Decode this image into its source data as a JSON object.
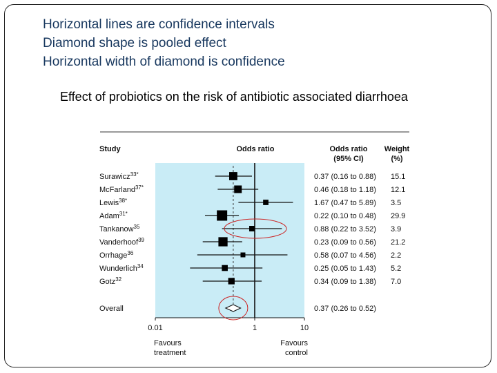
{
  "slide": {
    "notes": [
      "Horizontal lines are confidence intervals",
      "Diamond shape is pooled effect",
      "Horizontal width of diamond is confidence"
    ],
    "subtitle": "Effect of probiotics on the risk of antibiotic associated diarrhoea"
  },
  "chart_data": {
    "type": "forest",
    "headers": {
      "study": "Study",
      "odds_ratio": "Odds ratio",
      "or_ci_line1": "Odds ratio",
      "or_ci_line2": "(95% CI)",
      "weight_line1": "Weight",
      "weight_line2": "(%)"
    },
    "x_scale": "log",
    "x_ticks": [
      {
        "value": 0.01,
        "label": "0.01"
      },
      {
        "value": 1,
        "label": "1"
      },
      {
        "value": 10,
        "label": "10"
      }
    ],
    "xlim": [
      0.01,
      10
    ],
    "favours_left": [
      "Favours",
      "treatment"
    ],
    "favours_right": [
      "Favours",
      "control"
    ],
    "plot_background": "#c9ecf6",
    "highlight_color": "#cc2222",
    "studies": [
      {
        "name": "Surawicz",
        "ref": "33*",
        "or": 0.37,
        "lo": 0.16,
        "hi": 0.88,
        "ci_text": "0.37 (0.16 to 0.88)",
        "weight": 15.1,
        "weight_text": "15.1"
      },
      {
        "name": "McFarland",
        "ref": "37*",
        "or": 0.46,
        "lo": 0.18,
        "hi": 1.18,
        "ci_text": "0.46 (0.18 to 1.18)",
        "weight": 12.1,
        "weight_text": "12.1"
      },
      {
        "name": "Lewis",
        "ref": "38*",
        "or": 1.67,
        "lo": 0.47,
        "hi": 5.89,
        "ci_text": "1.67 (0.47 to 5.89)",
        "weight": 3.5,
        "weight_text": "3.5"
      },
      {
        "name": "Adam",
        "ref": "31*",
        "or": 0.22,
        "lo": 0.1,
        "hi": 0.48,
        "ci_text": "0.22 (0.10 to 0.48)",
        "weight": 29.9,
        "weight_text": "29.9"
      },
      {
        "name": "Tankanow",
        "ref": "35",
        "or": 0.88,
        "lo": 0.22,
        "hi": 3.52,
        "ci_text": "0.88 (0.22 to 3.52)",
        "weight": 3.9,
        "weight_text": "3.9",
        "highlighted": true
      },
      {
        "name": "Vanderhoof",
        "ref": "39",
        "or": 0.23,
        "lo": 0.09,
        "hi": 0.56,
        "ci_text": "0.23 (0.09 to 0.56)",
        "weight": 21.2,
        "weight_text": "21.2"
      },
      {
        "name": "Orrhage",
        "ref": "36",
        "or": 0.58,
        "lo": 0.07,
        "hi": 4.56,
        "ci_text": "0.58 (0.07 to 4.56)",
        "weight": 2.2,
        "weight_text": "2.2"
      },
      {
        "name": "Wunderlich",
        "ref": "34",
        "or": 0.25,
        "lo": 0.05,
        "hi": 1.43,
        "ci_text": "0.25 (0.05 to 1.43)",
        "weight": 5.2,
        "weight_text": "5.2"
      },
      {
        "name": "Gotz",
        "ref": "32",
        "or": 0.34,
        "lo": 0.09,
        "hi": 1.38,
        "ci_text": "0.34 (0.09 to 1.38)",
        "weight": 7.0,
        "weight_text": "7.0"
      }
    ],
    "overall": {
      "name": "Overall",
      "or": 0.37,
      "lo": 0.26,
      "hi": 0.52,
      "ci_text": "0.37 (0.26 to 0.52)",
      "highlighted": true
    }
  }
}
